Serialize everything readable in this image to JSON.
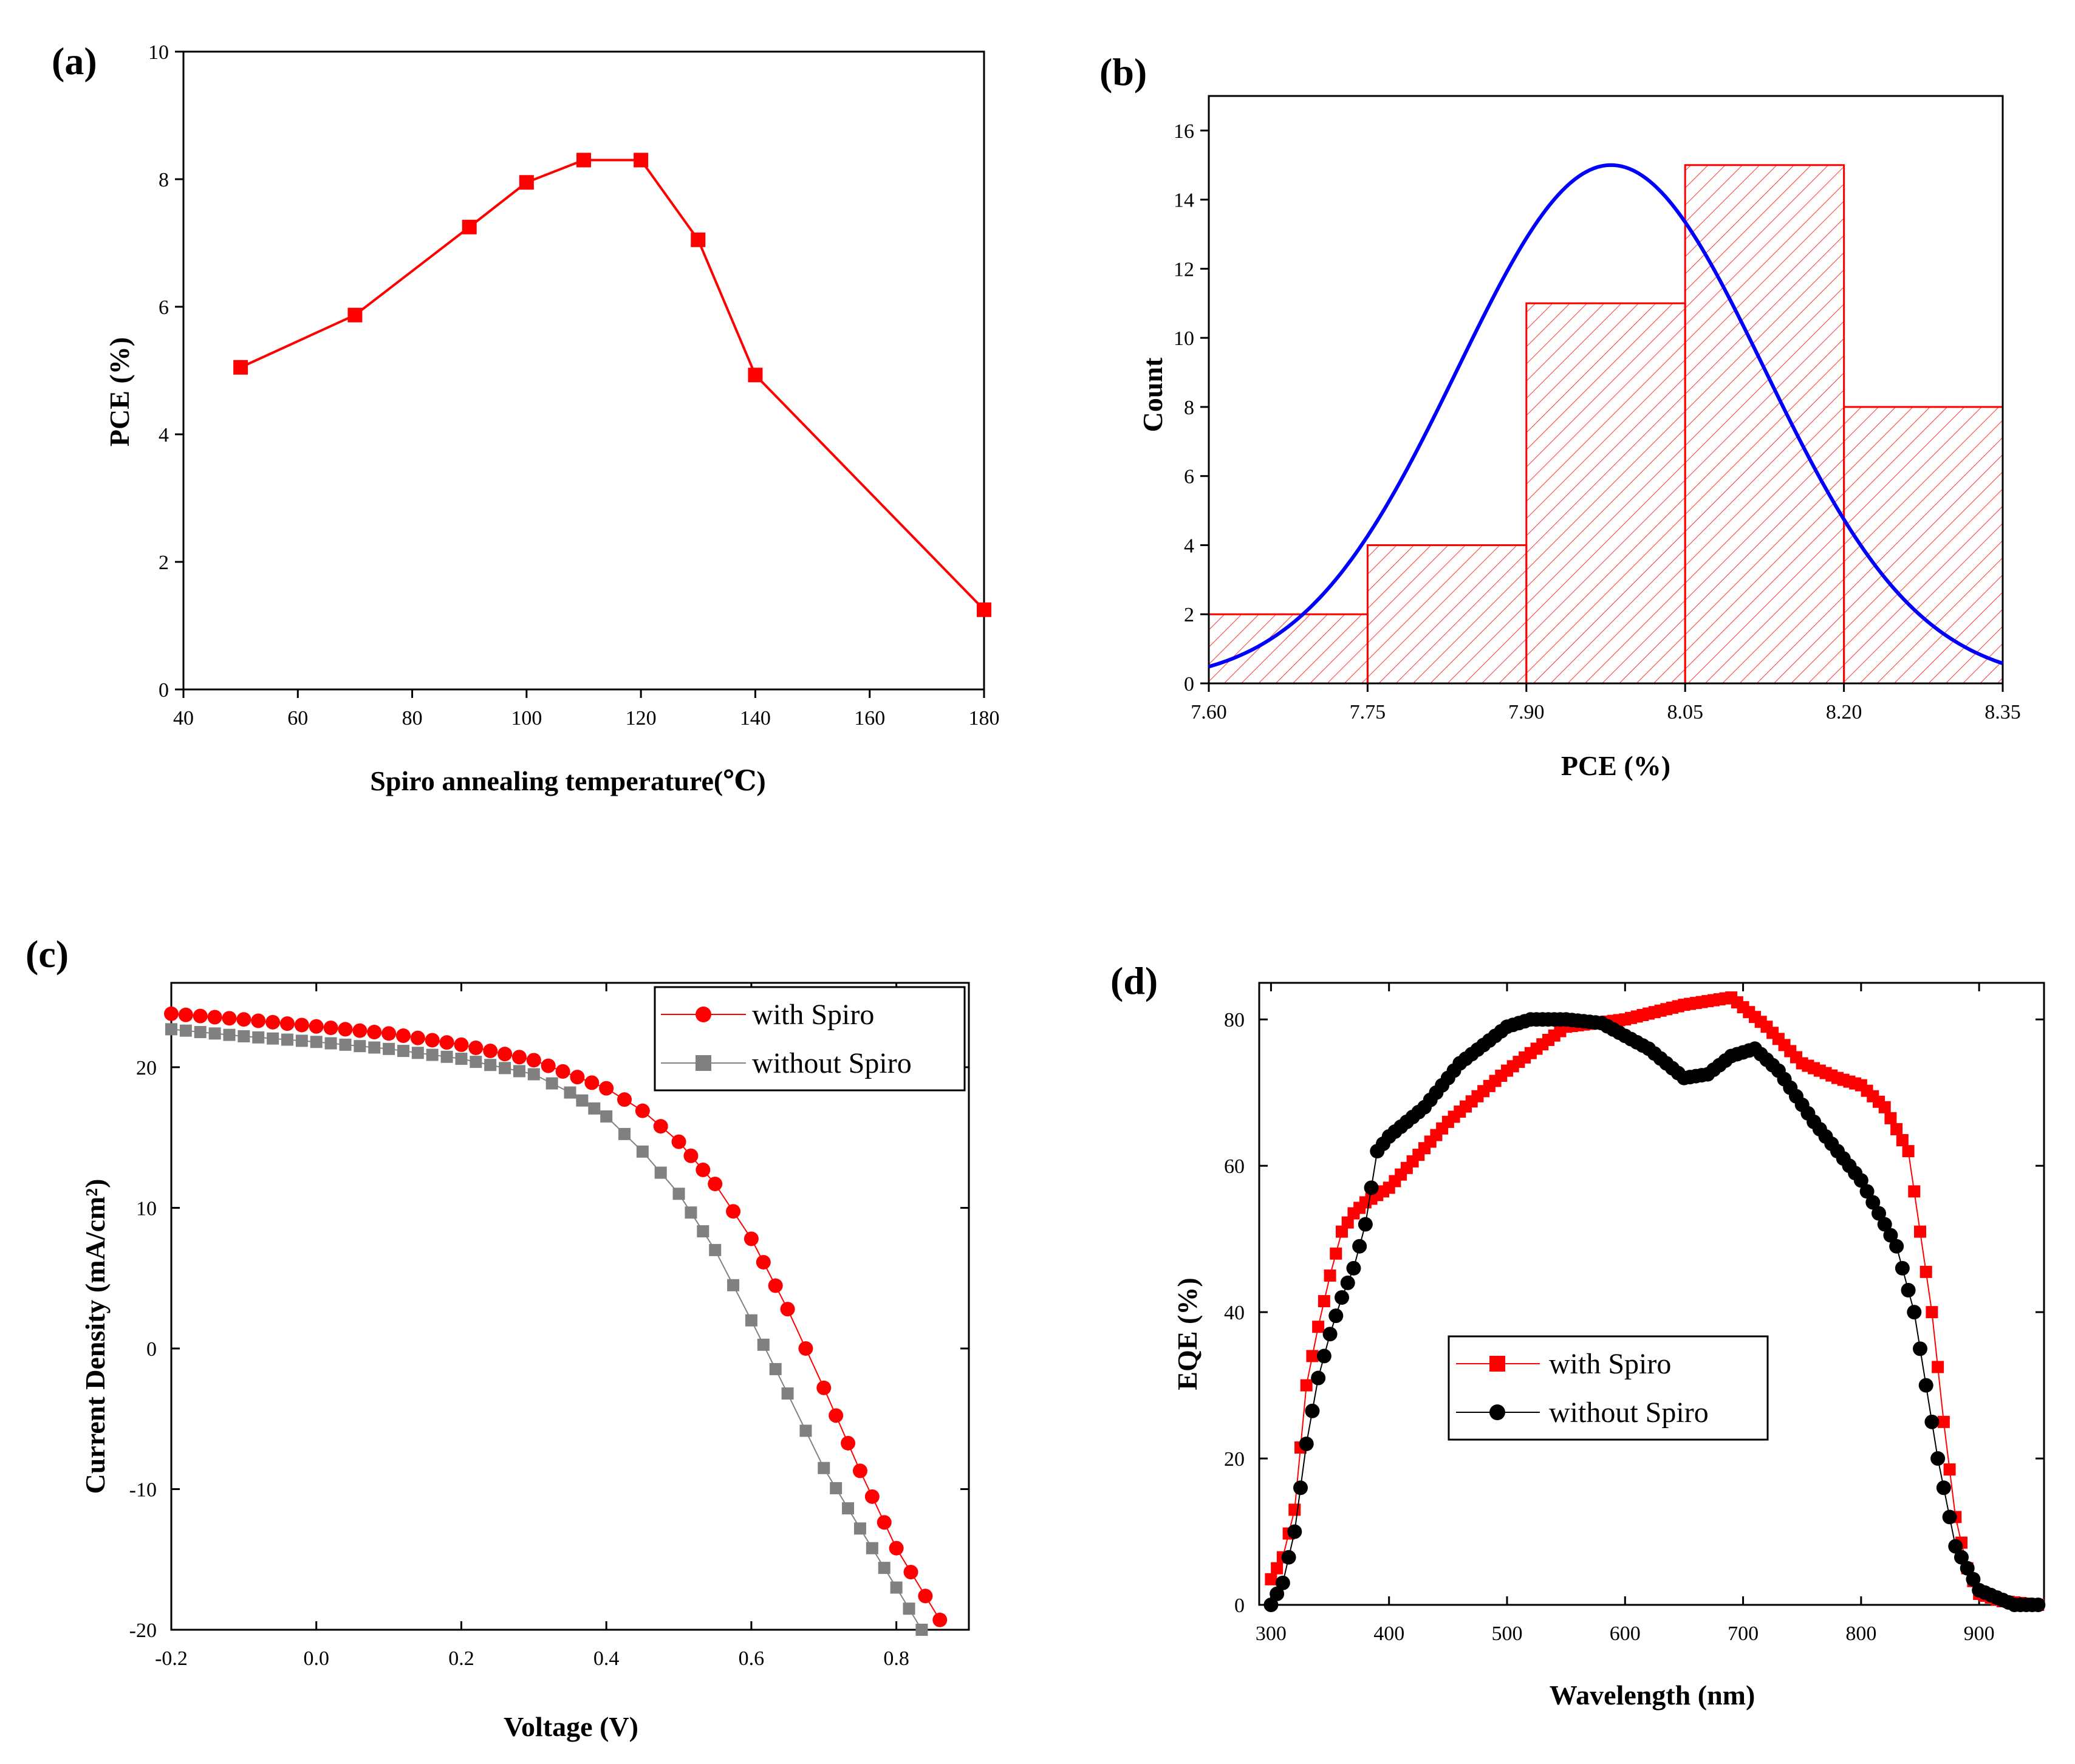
{
  "figure": {
    "panels": [
      "(a)",
      "(b)",
      "(c)",
      "(d)"
    ]
  },
  "colors": {
    "red": "#ff0000",
    "gray": "#808080",
    "blue": "#0000ff",
    "black": "#000000",
    "hatch": "#ff3333"
  },
  "chart_data": [
    {
      "id": "a",
      "type": "line",
      "panel_label": "(a)",
      "xlabel": "Spiro annealing temperature(℃)",
      "ylabel": "PCE (%)",
      "xlim": [
        40,
        180
      ],
      "ylim": [
        0,
        10
      ],
      "xticks": [
        "40",
        "60",
        "80",
        "100",
        "120",
        "140",
        "160",
        "180"
      ],
      "yticks": [
        "0",
        "2",
        "4",
        "6",
        "8",
        "10"
      ],
      "series": [
        {
          "name": "PCE",
          "marker": "square",
          "color": "#ff0000",
          "x": [
            50,
            70,
            90,
            100,
            110,
            120,
            130,
            140,
            180
          ],
          "y": [
            5.05,
            5.87,
            7.25,
            7.95,
            8.3,
            8.3,
            7.05,
            4.93,
            1.25
          ]
        }
      ]
    },
    {
      "id": "b",
      "type": "bar",
      "subtype": "histogram",
      "panel_label": "(b)",
      "xlabel": "PCE (%)",
      "ylabel": "Count",
      "xlim": [
        7.6,
        8.35
      ],
      "ylim": [
        0,
        17
      ],
      "xticks": [
        "7.60",
        "7.75",
        "7.90",
        "8.05",
        "8.20",
        "8.35"
      ],
      "yticks": [
        "0",
        "2",
        "4",
        "6",
        "8",
        "10",
        "12",
        "14",
        "16"
      ],
      "bins": [
        {
          "start": 7.6,
          "end": 7.75,
          "count": 2
        },
        {
          "start": 7.75,
          "end": 7.9,
          "count": 4
        },
        {
          "start": 7.9,
          "end": 8.05,
          "count": 11
        },
        {
          "start": 8.05,
          "end": 8.2,
          "count": 15
        },
        {
          "start": 8.2,
          "end": 8.35,
          "count": 8
        }
      ],
      "fit": {
        "type": "gaussian",
        "mean": 7.98,
        "sigma": 0.145,
        "peak": 15,
        "color": "#0000ff"
      }
    },
    {
      "id": "c",
      "type": "scatter",
      "panel_label": "(c)",
      "xlabel": "Voltage (V)",
      "ylabel": "Current Density (mA/cm²)",
      "xlim": [
        -0.2,
        0.9
      ],
      "ylim": [
        -20,
        26
      ],
      "xticks": [
        "-0.2",
        "0.0",
        "0.2",
        "0.4",
        "0.6",
        "0.8"
      ],
      "yticks": [
        "-20",
        "-10",
        "0",
        "10",
        "20"
      ],
      "legend": {
        "position": "top-right"
      },
      "series": [
        {
          "name": "with Spiro",
          "marker": "circle",
          "color": "#ff0000",
          "x": [
            -0.2,
            -0.1,
            0.0,
            0.1,
            0.2,
            0.3,
            0.4,
            0.45,
            0.5,
            0.55,
            0.6,
            0.65,
            0.7,
            0.75,
            0.8,
            0.86
          ],
          "y": [
            23.8,
            23.4,
            22.9,
            22.4,
            21.6,
            20.5,
            18.5,
            16.9,
            14.7,
            11.7,
            7.8,
            2.8,
            -2.8,
            -8.7,
            -14.2,
            -19.3
          ]
        },
        {
          "name": "without Spiro",
          "marker": "square",
          "color": "#808080",
          "x": [
            -0.2,
            -0.1,
            0.0,
            0.1,
            0.2,
            0.3,
            0.35,
            0.4,
            0.45,
            0.5,
            0.55,
            0.6,
            0.65,
            0.7,
            0.75,
            0.8,
            0.835
          ],
          "y": [
            22.7,
            22.2,
            21.8,
            21.3,
            20.6,
            19.5,
            18.2,
            16.5,
            14.0,
            11.0,
            7.0,
            2.0,
            -3.2,
            -8.5,
            -12.8,
            -17.0,
            -20.0
          ]
        }
      ]
    },
    {
      "id": "d",
      "type": "scatter",
      "panel_label": "(d)",
      "xlabel": "Wavelength (nm)",
      "ylabel": "EQE (%)",
      "xlim": [
        290,
        955
      ],
      "ylim": [
        0,
        85
      ],
      "xticks": [
        "300",
        "400",
        "500",
        "600",
        "700",
        "800",
        "900"
      ],
      "yticks": [
        "0",
        "20",
        "40",
        "60",
        "80"
      ],
      "legend": {
        "position": "center-left"
      },
      "series": [
        {
          "name": "with Spiro",
          "marker": "square",
          "color": "#ff0000",
          "x": [
            300,
            310,
            320,
            330,
            340,
            350,
            360,
            370,
            380,
            400,
            450,
            500,
            550,
            600,
            650,
            690,
            720,
            750,
            780,
            800,
            820,
            840,
            860,
            870,
            880,
            890,
            900,
            920,
            950
          ],
          "y": [
            3.5,
            6.5,
            13,
            30,
            38,
            45,
            51,
            53.5,
            55,
            57,
            66,
            73,
            79,
            80,
            82,
            83,
            79,
            74,
            72,
            71,
            68,
            62,
            40,
            25,
            12,
            5,
            1.5,
            0.5,
            0
          ]
        },
        {
          "name": "without Spiro",
          "marker": "circle",
          "color": "#000000",
          "x": [
            300,
            310,
            320,
            330,
            340,
            350,
            360,
            370,
            380,
            390,
            400,
            430,
            460,
            500,
            520,
            550,
            580,
            620,
            650,
            670,
            690,
            710,
            730,
            760,
            800,
            830,
            845,
            855,
            865,
            880,
            900,
            930,
            950
          ],
          "y": [
            0,
            3,
            10,
            22,
            31,
            37,
            42,
            46,
            52,
            62,
            64,
            68,
            74,
            79,
            80,
            80,
            79.5,
            76,
            72,
            72.5,
            75,
            76,
            73,
            66,
            58,
            49,
            40,
            30,
            20,
            8,
            2,
            0,
            0
          ]
        }
      ]
    }
  ]
}
